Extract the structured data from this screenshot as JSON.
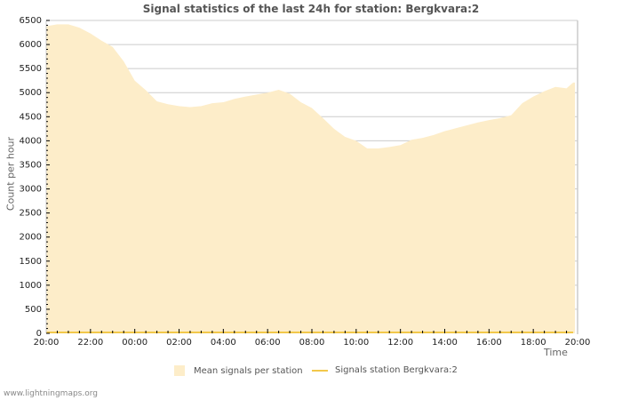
{
  "chart_data": {
    "type": "area",
    "title": "Signal statistics of the last 24h for station: Bergkvara:2",
    "xlabel": "Time",
    "ylabel": "Count per hour",
    "ylim": [
      0,
      6500
    ],
    "y_ticks": [
      0,
      500,
      1000,
      1500,
      2000,
      2500,
      3000,
      3500,
      4000,
      4500,
      5000,
      5500,
      6000,
      6500
    ],
    "x_ticks": [
      "20:00",
      "22:00",
      "00:00",
      "02:00",
      "04:00",
      "06:00",
      "08:00",
      "10:00",
      "12:00",
      "14:00",
      "16:00",
      "18:00",
      "20:00"
    ],
    "grid": true,
    "legend_position": "bottom",
    "x_hours": [
      0,
      0.5,
      1,
      1.5,
      2,
      2.5,
      3,
      3.5,
      4,
      4.5,
      5,
      5.5,
      6,
      6.5,
      7,
      7.5,
      8,
      8.5,
      9,
      9.5,
      10,
      10.5,
      11,
      11.5,
      12,
      12.5,
      13,
      13.5,
      14,
      14.5,
      15,
      15.5,
      16,
      16.5,
      17,
      17.5,
      18,
      18.5,
      19,
      19.5,
      20,
      20.5,
      21,
      21.5,
      22,
      22.5,
      23,
      23.5,
      23.8
    ],
    "series": [
      {
        "name": "Mean signals per station",
        "style": "area",
        "color": "#fdedc9",
        "values": [
          6380,
          6420,
          6420,
          6350,
          6230,
          6080,
          5950,
          5650,
          5250,
          5050,
          4820,
          4760,
          4720,
          4700,
          4720,
          4780,
          4800,
          4870,
          4920,
          4960,
          5000,
          5060,
          4980,
          4800,
          4680,
          4470,
          4250,
          4080,
          4000,
          3840,
          3840,
          3870,
          3910,
          4020,
          4060,
          4120,
          4200,
          4260,
          4320,
          4380,
          4430,
          4470,
          4530,
          4780,
          4920,
          5030,
          5120,
          5090,
          5210
        ]
      },
      {
        "name": "Signals station Bergkvara:2",
        "style": "line",
        "color": "#f2c84b",
        "values": [
          0,
          0,
          0,
          0,
          0,
          0,
          0,
          0,
          0,
          0,
          0,
          0,
          0,
          0,
          0,
          0,
          0,
          0,
          0,
          0,
          0,
          0,
          0,
          0,
          0,
          0,
          0,
          0,
          0,
          0,
          0,
          0,
          0,
          0,
          0,
          0,
          0,
          0,
          0,
          0,
          0,
          0,
          0,
          0,
          0,
          0,
          0,
          0,
          0
        ]
      }
    ]
  },
  "header": {
    "title": "Signal statistics of the last 24h for station: Bergkvara:2"
  },
  "axes": {
    "ylabel": "Count per hour",
    "xlabel": "Time"
  },
  "legend": {
    "items": [
      {
        "label": "Mean signals per station",
        "color": "#fdedc9",
        "icon": "area-swatch"
      },
      {
        "label": "Signals station Bergkvara:2",
        "color": "#f2c84b",
        "icon": "line-swatch"
      }
    ]
  },
  "footer": {
    "text": "www.lightningmaps.org"
  }
}
